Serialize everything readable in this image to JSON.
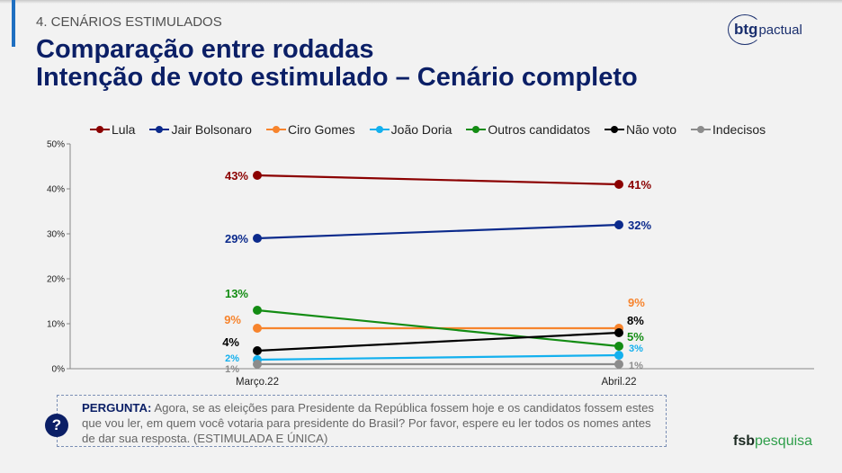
{
  "header": {
    "section": "4. CENÁRIOS ESTIMULADOS",
    "title_line1": "Comparação entre rodadas",
    "title_line2": "Intenção de voto estimulado – Cenário completo"
  },
  "logos": {
    "btg_bold": "btg",
    "btg_light": "pactual",
    "fsb_bold": "fsb",
    "fsb_light": "pesquisa"
  },
  "question": {
    "icon": "?",
    "label": "PERGUNTA:",
    "text": " Agora, se as eleições para Presidente da República fossem hoje e os candidatos fossem estes que vou ler, em quem você votaria para presidente do Brasil? Por favor, espere eu ler todos os nomes antes de dar sua resposta. (ESTIMULADA E ÚNICA)"
  },
  "chart_data": {
    "type": "line",
    "title": "",
    "xlabel": "",
    "ylabel": "",
    "categories": [
      "Março.22",
      "Abril.22"
    ],
    "ylim": [
      0,
      50
    ],
    "yticks": [
      0,
      10,
      20,
      30,
      40,
      50
    ],
    "ytick_labels": [
      "0%",
      "10%",
      "20%",
      "30%",
      "40%",
      "50%"
    ],
    "grid": false,
    "legend_position": "top",
    "series": [
      {
        "name": "Lula",
        "color": "#8b0000",
        "values": [
          43,
          41
        ],
        "labels": [
          "43%",
          "41%"
        ]
      },
      {
        "name": "Jair Bolsonaro",
        "color": "#0b2a8c",
        "values": [
          29,
          32
        ],
        "labels": [
          "29%",
          "32%"
        ]
      },
      {
        "name": "Ciro Gomes",
        "color": "#f7842d",
        "values": [
          9,
          9
        ],
        "labels": [
          "9%",
          "9%"
        ]
      },
      {
        "name": "João Doria",
        "color": "#13b0ee",
        "values": [
          2,
          3
        ],
        "labels": [
          "2%",
          "3%"
        ]
      },
      {
        "name": "Outros candidatos",
        "color": "#138c13",
        "values": [
          13,
          5
        ],
        "labels": [
          "13%",
          "5%"
        ]
      },
      {
        "name": "Não voto",
        "color": "#000000",
        "values": [
          4,
          8
        ],
        "labels": [
          "4%",
          "8%"
        ]
      },
      {
        "name": "Indecisos",
        "color": "#8c8c8c",
        "values": [
          1,
          1
        ],
        "labels": [
          "1%",
          "1%"
        ]
      }
    ]
  }
}
